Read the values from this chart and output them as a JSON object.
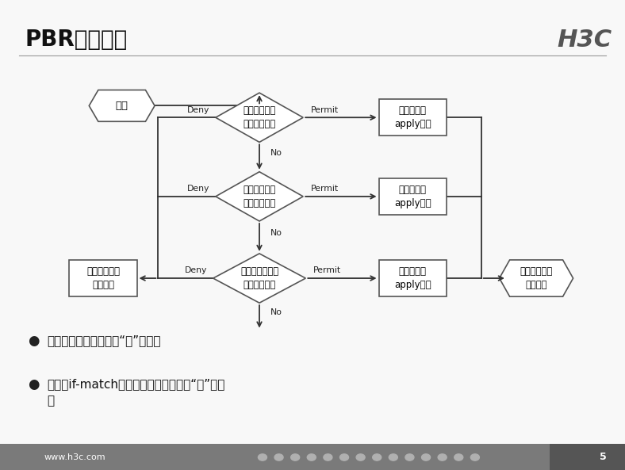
{
  "title": "PBR匹配流程",
  "h3c_logo": "H3C",
  "bg_color": "#f5f5f5",
  "slide_bg": "#ffffff",
  "footer_text": "www.h3c.com",
  "page_num": "5",
  "bullet1": "节点之间的过滤关系是“或”的关系",
  "bullet2_line1": "节点的if-match子句之间的过滤关系是“与”的关",
  "bullet2_line2": "系",
  "diamond1_label": "满足第一个节\n点的匹配规则",
  "diamond2_label": "满足第二个节\n点的匹配规则",
  "diamond3_label": "满足最后一个节\n点的匹配规则",
  "apply_label": "执行节点的\napply子句",
  "normal_label": "报文按照普通\n路由转发",
  "policy_label": "报文按照策略\n路由转发",
  "baow_label": "报文",
  "permit_label": "Permit",
  "deny_label": "Deny",
  "no_label": "No"
}
